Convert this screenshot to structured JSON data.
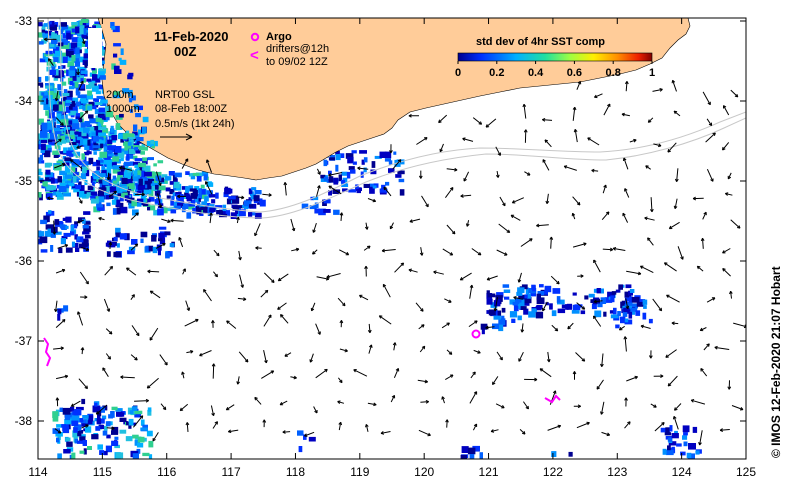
{
  "map": {
    "date_title": "11-Feb-2020",
    "time_title": "00Z",
    "argo_label": "Argo",
    "drifters_label_1": "drifters@12h",
    "drifters_label_2": "to 09/02 12Z",
    "iso_200": "200m",
    "iso_1000": "1000m",
    "source": "NRT00 GSL",
    "source_date": "08-Feb 18:00Z",
    "scale_label": "0.5m/s (1kt 24h)",
    "copyright": "© IMOS 12-Feb-2020 21:07 Hobart",
    "lon_ticks": [
      "114",
      "115",
      "116",
      "117",
      "118",
      "119",
      "120",
      "121",
      "122",
      "123",
      "124",
      "125"
    ],
    "lat_ticks": [
      "-33",
      "-34",
      "-35",
      "-36",
      "-37",
      "-38"
    ],
    "colors": {
      "land": "#ffcc99",
      "argo": "#ff00ff",
      "drifter": "#ff00ff",
      "sst_low": "#0000a0",
      "sst_mid": "#00a0ff"
    }
  },
  "colorbar": {
    "title": "std dev of 4hr SST comp",
    "ticks": [
      "0",
      "0.2",
      "0.4",
      "0.6",
      "0.8",
      "1"
    ],
    "min": 0,
    "max": 1
  }
}
